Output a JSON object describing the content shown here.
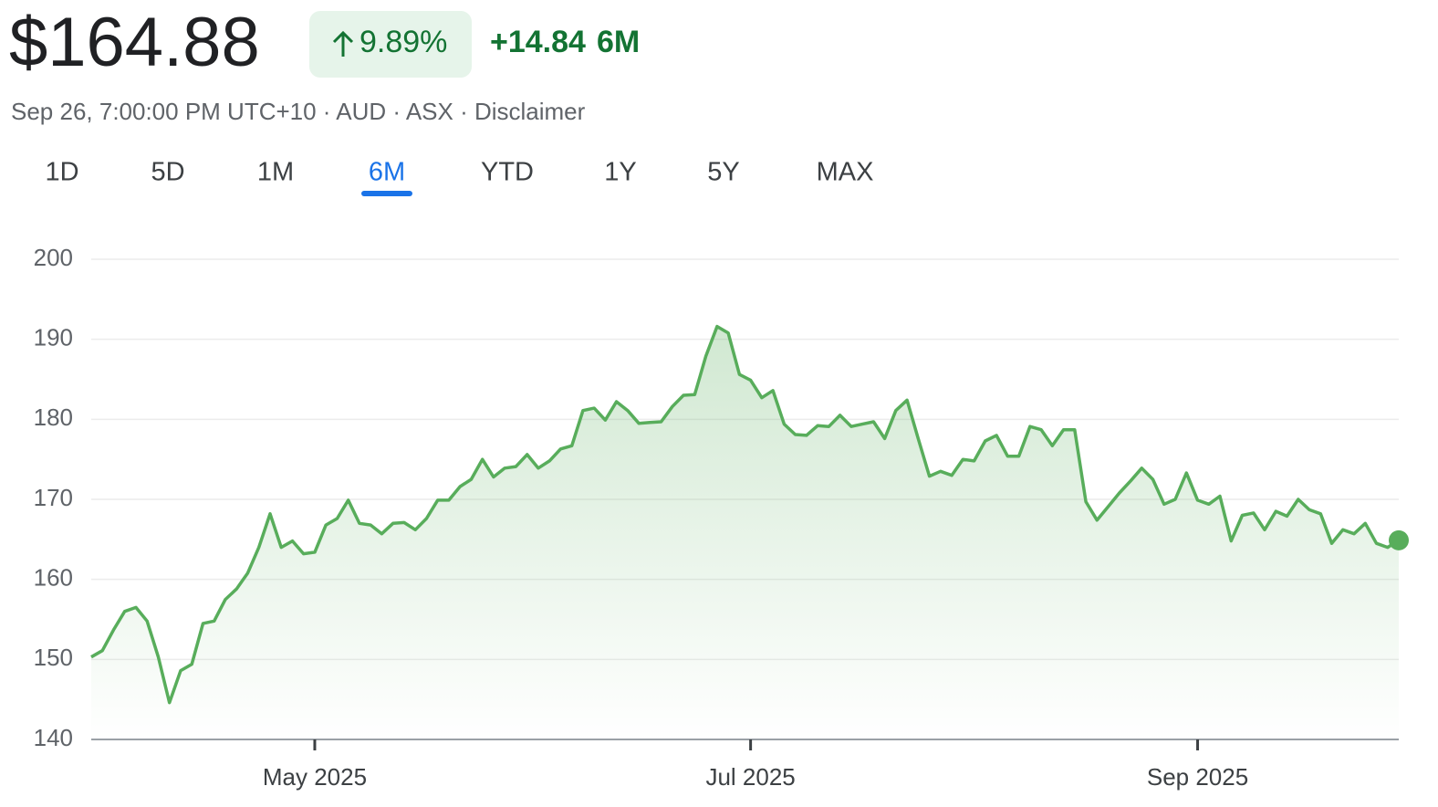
{
  "header": {
    "price": "$164.88",
    "change_percent": "9.89%",
    "change_abs": "+14.84",
    "period": "6M",
    "info": "Sep 26, 7:00:00 PM UTC+10 · AUD · ASX · Disclaimer"
  },
  "tabs": {
    "items": [
      "1D",
      "5D",
      "1M",
      "6M",
      "YTD",
      "1Y",
      "5Y",
      "MAX"
    ],
    "selected": "6M"
  },
  "chart_data": {
    "type": "line",
    "color": "#58ad5b",
    "grid": true,
    "ylim": [
      140,
      200
    ],
    "yticks": [
      140,
      150,
      160,
      170,
      180,
      190,
      200
    ],
    "categories": [
      null,
      null,
      null,
      null,
      null,
      null,
      null,
      null,
      null,
      null,
      null,
      null,
      null,
      null,
      null,
      null,
      null,
      null,
      null,
      null,
      "May 2025",
      null,
      null,
      null,
      null,
      null,
      null,
      null,
      null,
      null,
      null,
      null,
      null,
      null,
      null,
      null,
      null,
      null,
      null,
      null,
      null,
      null,
      null,
      null,
      null,
      null,
      null,
      null,
      null,
      null,
      null,
      null,
      null,
      null,
      null,
      null,
      null,
      null,
      null,
      "Jul 2025",
      null,
      null,
      null,
      null,
      null,
      null,
      null,
      null,
      null,
      null,
      null,
      null,
      null,
      null,
      null,
      null,
      null,
      null,
      null,
      null,
      null,
      null,
      null,
      null,
      null,
      null,
      null,
      null,
      null,
      null,
      null,
      null,
      null,
      null,
      null,
      null,
      null,
      null,
      null,
      "Sep 2025",
      null,
      null,
      null,
      null,
      null,
      null,
      null,
      null,
      null,
      null,
      null,
      null,
      null,
      null,
      null,
      null,
      null,
      null
    ],
    "values": [
      150.3,
      151.1,
      153.7,
      156,
      156.5,
      154.8,
      150.3,
      144.6,
      148.6,
      149.4,
      154.5,
      154.8,
      157.5,
      158.8,
      160.8,
      164,
      168.2,
      164,
      164.8,
      163.2,
      163.4,
      166.8,
      167.6,
      169.9,
      167,
      166.8,
      165.7,
      167,
      167.1,
      166.2,
      167.6,
      169.9,
      169.9,
      171.6,
      172.5,
      175,
      172.8,
      173.9,
      174.1,
      175.6,
      173.9,
      174.8,
      176.3,
      176.7,
      181.1,
      181.4,
      179.9,
      182.2,
      181.1,
      179.5,
      179.6,
      179.7,
      181.6,
      183,
      183.1,
      187.9,
      191.6,
      190.8,
      185.6,
      184.9,
      182.7,
      183.6,
      179.4,
      178.1,
      178,
      179.2,
      179.1,
      180.5,
      179.1,
      179.4,
      179.7,
      177.6,
      181.1,
      182.4,
      177.6,
      172.9,
      173.5,
      173,
      175,
      174.8,
      177.3,
      178,
      175.4,
      175.4,
      179.1,
      178.7,
      176.7,
      178.7,
      178.7,
      169.7,
      167.4,
      169.1,
      170.8,
      172.3,
      173.9,
      172.5,
      169.4,
      170,
      173.3,
      169.9,
      169.4,
      170.4,
      164.8,
      168,
      168.3,
      166.2,
      168.5,
      167.9,
      170,
      168.7,
      168.2,
      164.5,
      166.2,
      165.7,
      167,
      164.5,
      164,
      164.88
    ]
  }
}
